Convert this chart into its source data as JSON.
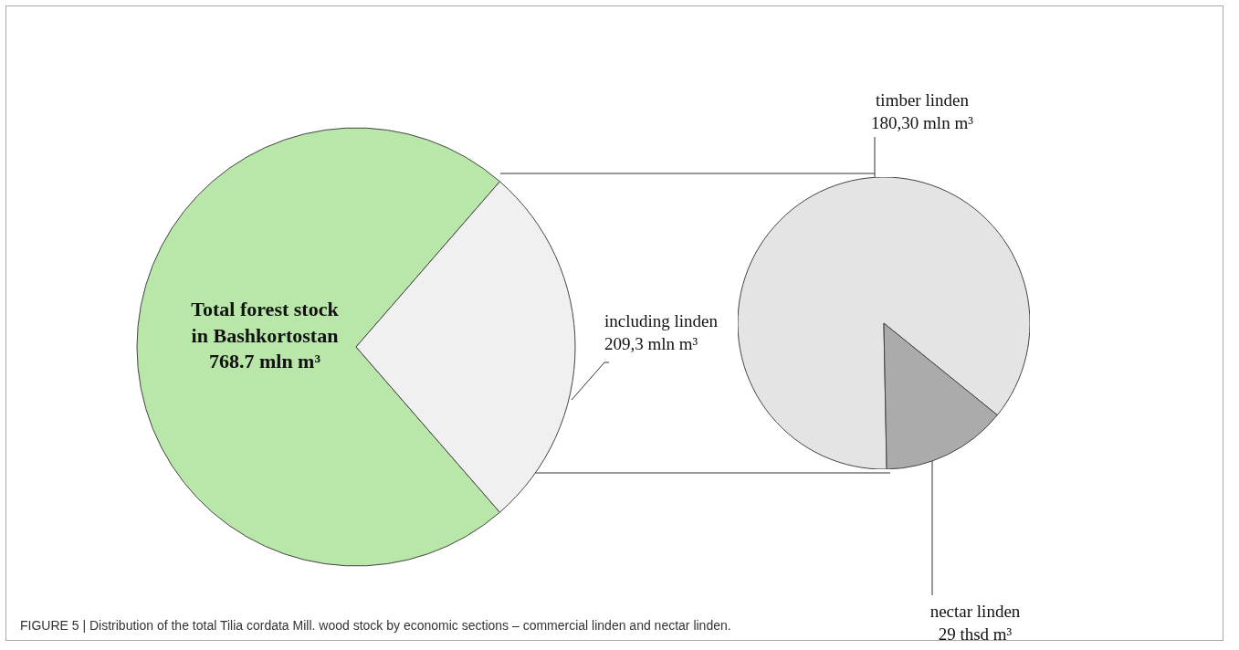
{
  "chart_data": [
    {
      "type": "pie",
      "categories": [
        "Total forest stock\nin Bashkortostan\n768.7 mln m³",
        "including linden\n209,3  mln m³"
      ],
      "values": [
        559.4,
        209.3
      ],
      "colors": [
        "#b9e6a9",
        "#f0f0f0"
      ],
      "annotations": [
        "FIGURE 5 | Distribution of the total Tilia cordata Mill. wood stock by economic sections – commercial linden and nectar linden."
      ]
    },
    {
      "type": "pie",
      "categories": [
        "timber linden\n180,30  mln m³",
        "nectar linden\n29 thsd m³"
      ],
      "values": [
        180.3,
        29
      ],
      "colors": [
        "#e4e4e4",
        "#ababab"
      ]
    }
  ]
}
